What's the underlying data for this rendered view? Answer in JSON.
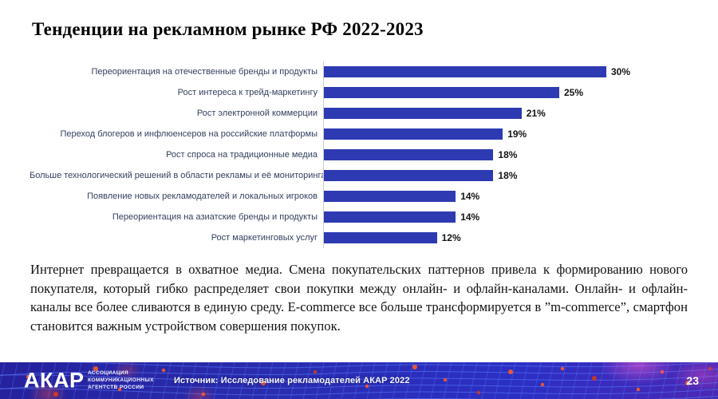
{
  "slide": {
    "title": "Тенденции на рекламном рынке РФ 2022-2023",
    "paragraph": "Интернет превращается в охватное медиа. Смена покупательских паттернов привела к формированию нового покупателя, который гибко распределяет свои покупки между онлайн- и офлайн-каналами. Онлайн- и офлайн-каналы все более сливаются в единую среду. E-commerce все больше трансформируется в ”m-commerce”, смартфон становится важным устройством совершения покупок.",
    "page_number": "23"
  },
  "footer": {
    "logo_text": "АКАР",
    "logo_tagline": [
      "АССОЦИАЦИЯ",
      "КОММУНИКАЦИОННЫХ",
      "АГЕНТСТВ РОССИИ"
    ],
    "source": "Источник: Исследование рекламодателей АКАР 2022"
  },
  "colors": {
    "bar": "#2E3AB2",
    "label_text": "#33405E",
    "axis_line": "#C9CDD6",
    "footer_base": "#2A2DB0",
    "dot_accent": "#FF5A26"
  },
  "chart_data": {
    "type": "bar",
    "orientation": "horizontal",
    "title": "",
    "xlabel": "",
    "ylabel": "",
    "categories": [
      "Переориентация на отечественные бренды и продукты",
      "Рост интереса к трейд-маркетингу",
      "Рост электронной коммерции",
      "Переход блогеров и инфлюенсеров на российские платформы",
      "Рост спроса на традиционные медиа",
      "Больше технологический решений в области рекламы и её мониторинга",
      "Появление новых рекламодателей и локальных игроков",
      "Переориентация  на азиатские бренды и продукты",
      "Рост маркетинговых услуг"
    ],
    "values": [
      30,
      25,
      21,
      19,
      18,
      18,
      14,
      14,
      12
    ],
    "value_labels": [
      "30%",
      "25%",
      "21%",
      "19%",
      "18%",
      "18%",
      "14%",
      "14%",
      "12%"
    ],
    "xlim": [
      0,
      32.5
    ],
    "grid": false,
    "legend": false,
    "bar_color": "#2E3AB2"
  }
}
